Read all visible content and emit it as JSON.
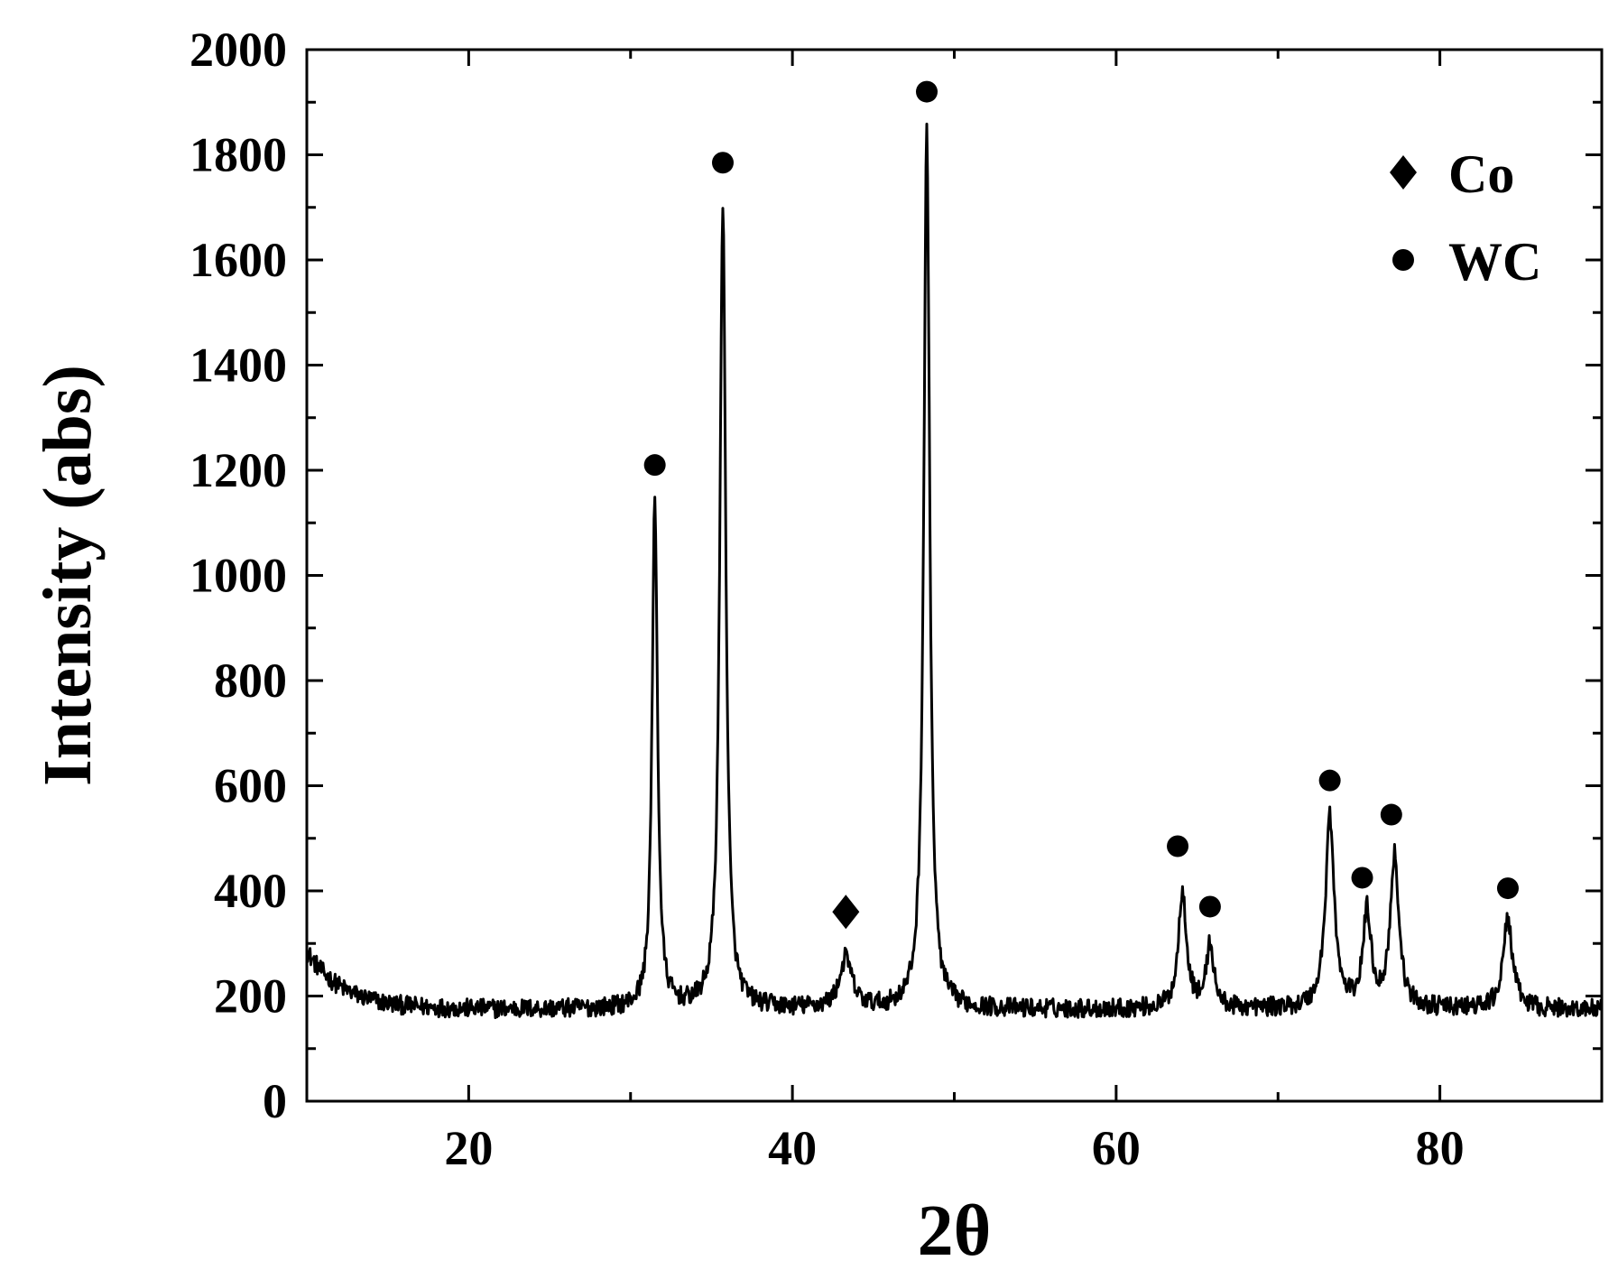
{
  "chart_data": {
    "type": "line",
    "title": "",
    "xlabel": "2θ",
    "ylabel": "Intensity (abs)",
    "xlim": [
      10,
      90
    ],
    "ylim": [
      0,
      2000
    ],
    "x_ticks": [
      20,
      40,
      60,
      80
    ],
    "y_ticks": [
      0,
      200,
      400,
      600,
      800,
      1000,
      1200,
      1400,
      1600,
      1800,
      2000
    ],
    "grid": false,
    "legend": {
      "position": "top-right",
      "entries": [
        {
          "label": "Co",
          "marker": "diamond"
        },
        {
          "label": "WC",
          "marker": "circle"
        }
      ]
    },
    "baseline": 175,
    "noise_amplitude": 18,
    "start_shoulder": {
      "x0": 10,
      "level": 285,
      "decay": 2.2
    },
    "peaks": [
      {
        "x": 31.5,
        "height": 1145,
        "width": 0.2
      },
      {
        "x": 35.7,
        "height": 1710,
        "width": 0.22
      },
      {
        "x": 43.3,
        "height": 270,
        "width": 0.45
      },
      {
        "x": 48.3,
        "height": 1845,
        "width": 0.22
      },
      {
        "x": 64.1,
        "height": 400,
        "width": 0.3
      },
      {
        "x": 65.8,
        "height": 295,
        "width": 0.28
      },
      {
        "x": 73.2,
        "height": 540,
        "width": 0.32
      },
      {
        "x": 75.5,
        "height": 355,
        "width": 0.3
      },
      {
        "x": 77.2,
        "height": 465,
        "width": 0.32
      },
      {
        "x": 84.2,
        "height": 345,
        "width": 0.35
      }
    ],
    "markers": [
      {
        "phase": "WC",
        "shape": "circle",
        "x": 31.5,
        "y": 1210
      },
      {
        "phase": "WC",
        "shape": "circle",
        "x": 35.7,
        "y": 1785
      },
      {
        "phase": "Co",
        "shape": "diamond",
        "x": 43.3,
        "y": 360
      },
      {
        "phase": "WC",
        "shape": "circle",
        "x": 48.3,
        "y": 1920
      },
      {
        "phase": "WC",
        "shape": "circle",
        "x": 63.8,
        "y": 485
      },
      {
        "phase": "WC",
        "shape": "circle",
        "x": 65.8,
        "y": 370
      },
      {
        "phase": "WC",
        "shape": "circle",
        "x": 73.2,
        "y": 610
      },
      {
        "phase": "WC",
        "shape": "circle",
        "x": 75.2,
        "y": 425
      },
      {
        "phase": "WC",
        "shape": "circle",
        "x": 77.0,
        "y": 545
      },
      {
        "phase": "WC",
        "shape": "circle",
        "x": 84.2,
        "y": 405
      }
    ]
  }
}
